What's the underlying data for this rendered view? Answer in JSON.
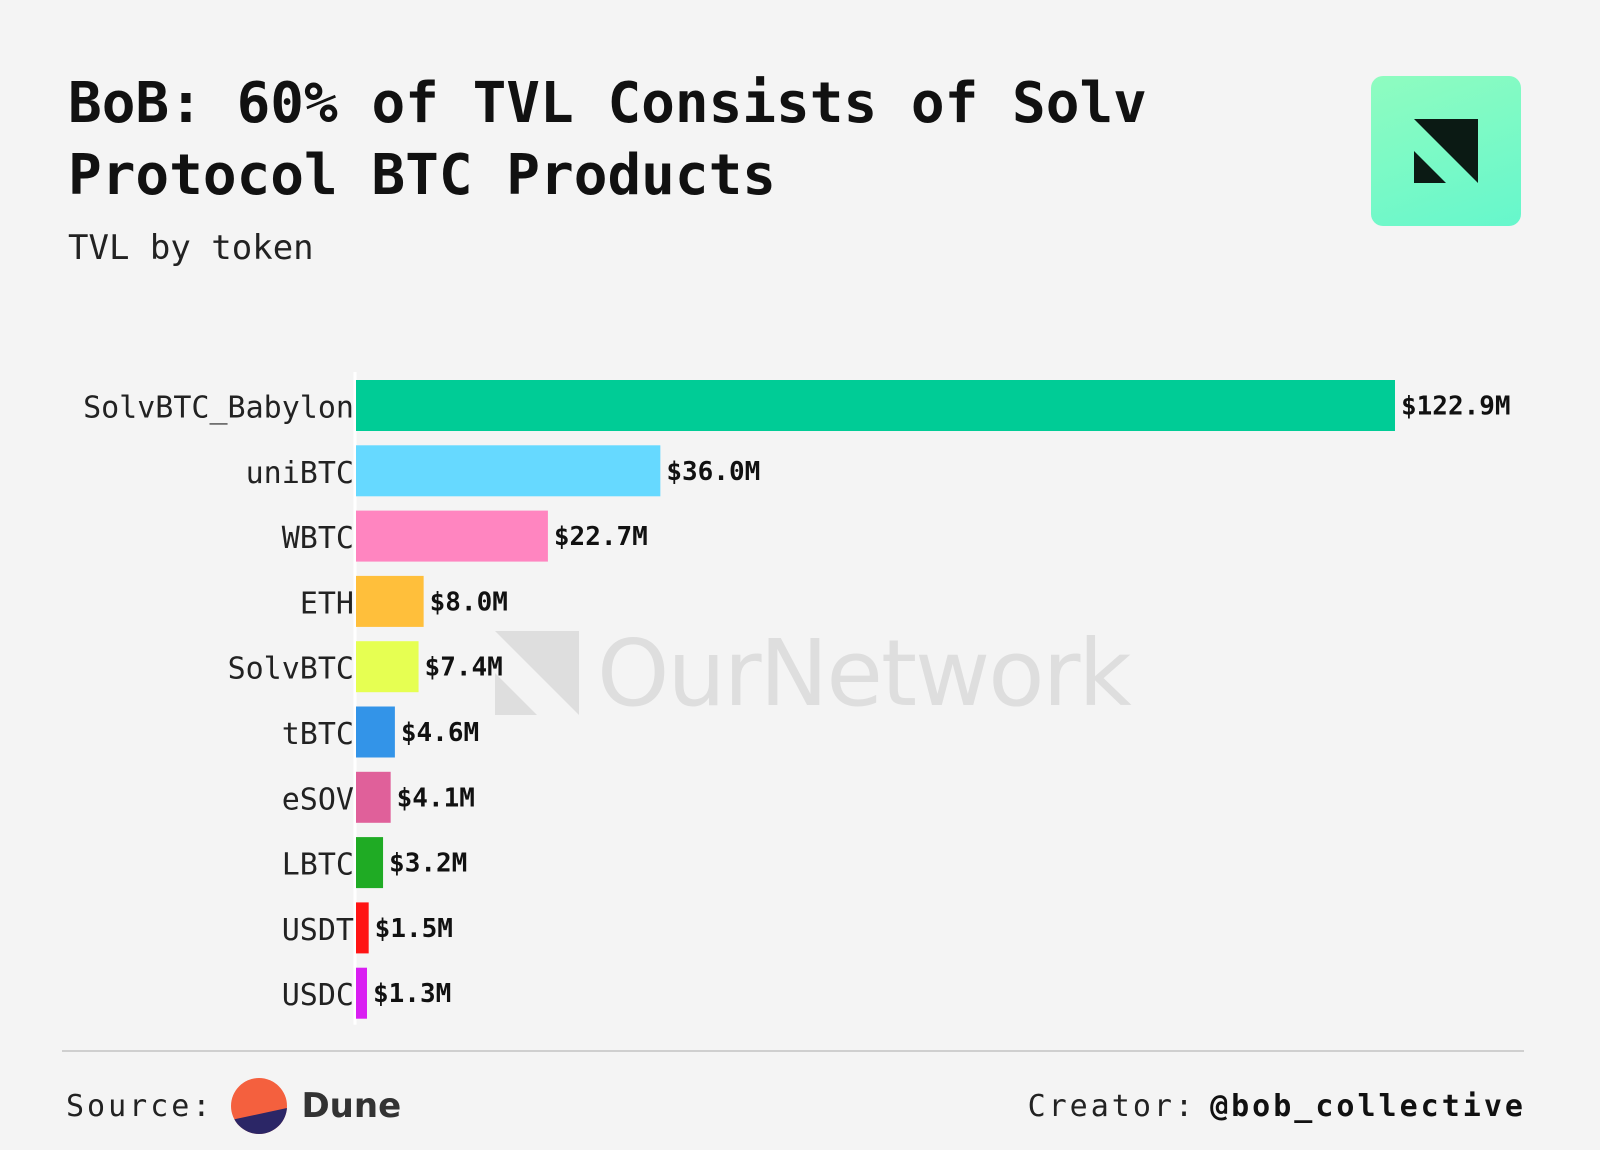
{
  "header": {
    "title_bold": "BoB:",
    "title_rest": "60% of TVL Consists of Solv Protocol BTC Products",
    "subtitle": "TVL by token"
  },
  "watermark": {
    "text": "OurNetwork"
  },
  "footer": {
    "source_label": "Source:",
    "source_name": "Dune",
    "creator_label": "Creator:",
    "creator_handle": "@bob_collective"
  },
  "chart_data": {
    "type": "bar",
    "orientation": "horizontal",
    "title": "BoB: 60% of TVL Consists of Solv Protocol BTC Products",
    "subtitle": "TVL by token",
    "categories": [
      "SolvBTC_Babylon",
      "uniBTC",
      "WBTC",
      "ETH",
      "SolvBTC",
      "tBTC",
      "eSOV",
      "LBTC",
      "USDT",
      "USDC"
    ],
    "values": [
      122.9,
      36.0,
      22.7,
      8.0,
      7.4,
      4.6,
      4.1,
      3.2,
      1.5,
      1.3
    ],
    "value_labels": [
      "$122.9M",
      "$36.0M",
      "$22.7M",
      "$8.0M",
      "$7.4M",
      "$4.6M",
      "$4.1M",
      "$3.2M",
      "$1.5M",
      "$1.3M"
    ],
    "colors": [
      "#00cc96",
      "#66d9ff",
      "#ff85c0",
      "#ffbf3b",
      "#e6ff52",
      "#3394e8",
      "#e0609a",
      "#1fab24",
      "#ff1414",
      "#d91ff2"
    ],
    "unit": "$M",
    "xlim": [
      0,
      122.9
    ],
    "grid": false
  }
}
